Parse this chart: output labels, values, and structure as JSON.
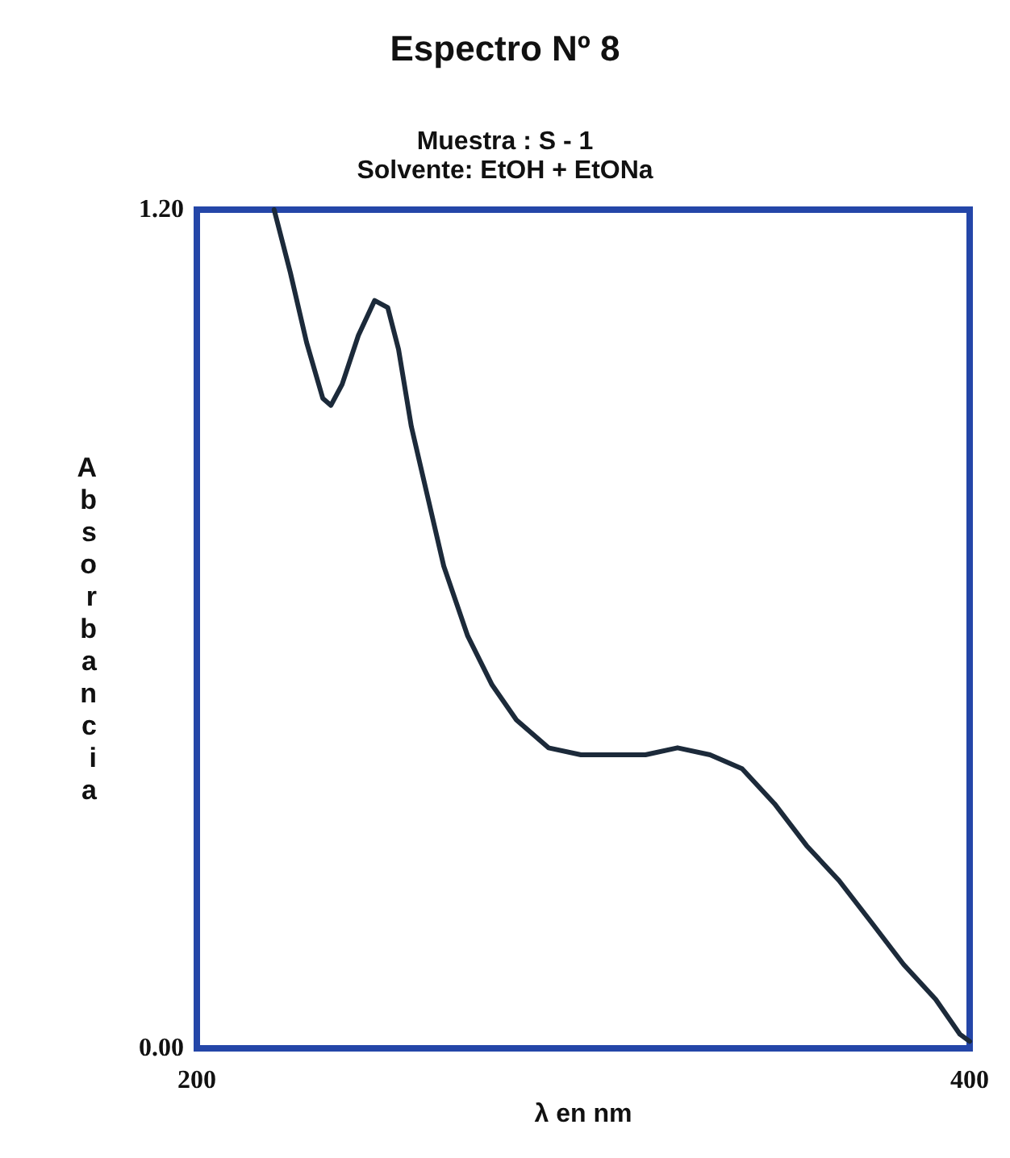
{
  "chart_data": {
    "type": "line",
    "title": "Espectro Nº 8",
    "subtitle": "Muestra : S - 1\nSolvente: EtOH + EtONa",
    "xlabel": "λ en nm",
    "ylabel": "Absorbancia",
    "x": [
      220.0,
      224.2,
      228.4,
      232.6,
      234.7,
      237.6,
      241.8,
      246.0,
      249.4,
      252.2,
      255.5,
      259.7,
      263.9,
      270.1,
      276.4,
      282.7,
      291.0,
      299.4,
      307.7,
      316.1,
      324.4,
      332.8,
      341.1,
      349.5,
      357.8,
      366.2,
      374.6,
      382.9,
      391.2,
      397.5,
      400.0
    ],
    "series": [
      {
        "color": "#1c2a3a",
        "values": [
          1.2,
          1.11,
          1.01,
          0.93,
          0.92,
          0.95,
          1.02,
          1.07,
          1.06,
          1.0,
          0.89,
          0.79,
          0.69,
          0.59,
          0.52,
          0.47,
          0.43,
          0.42,
          0.42,
          0.42,
          0.43,
          0.42,
          0.4,
          0.35,
          0.29,
          0.24,
          0.18,
          0.12,
          0.07,
          0.02,
          0.01
        ]
      }
    ],
    "xlim": [
      200,
      400
    ],
    "xticks": [
      200,
      400
    ],
    "ylim": [
      0,
      1.2
    ],
    "yticks": [
      {
        "value": 0,
        "label": "0.00"
      },
      {
        "value": 1.2,
        "label": "1.20"
      }
    ],
    "grid": false,
    "marker": "none",
    "line_style": "solid"
  }
}
